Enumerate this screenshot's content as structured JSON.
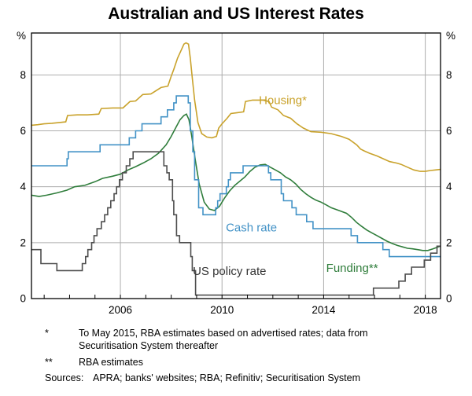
{
  "title": "Australian and US Interest Rates",
  "chart_data": {
    "type": "line",
    "title": "Australian and US Interest Rates",
    "y_unit": "%",
    "xlim": [
      2002.5,
      2018.6
    ],
    "ylim": [
      0,
      9.5
    ],
    "yticks": [
      0,
      2,
      4,
      6,
      8
    ],
    "ygrid": [
      2,
      4,
      6,
      8
    ],
    "xgrid": [
      2006,
      2010,
      2014,
      2018
    ],
    "xticks_minor": [
      2003,
      2004,
      2005,
      2006,
      2007,
      2008,
      2009,
      2010,
      2011,
      2012,
      2013,
      2014,
      2015,
      2016,
      2017,
      2018
    ],
    "xtick_labels": [
      {
        "x": 2006,
        "label": "2006"
      },
      {
        "x": 2010,
        "label": "2010"
      },
      {
        "x": 2014,
        "label": "2014"
      },
      {
        "x": 2018,
        "label": "2018"
      }
    ],
    "grid_color": "#ADADAD",
    "legend_position": "inline-annotations",
    "series": [
      {
        "name": "Housing*",
        "color": "#C9A22B",
        "step": false,
        "points": [
          [
            2002.5,
            6.2
          ],
          [
            2002.75,
            6.22
          ],
          [
            2003.0,
            6.25
          ],
          [
            2003.3,
            6.27
          ],
          [
            2003.6,
            6.3
          ],
          [
            2003.85,
            6.32
          ],
          [
            2003.92,
            6.55
          ],
          [
            2004.3,
            6.57
          ],
          [
            2004.7,
            6.57
          ],
          [
            2005.15,
            6.6
          ],
          [
            2005.25,
            6.8
          ],
          [
            2005.7,
            6.82
          ],
          [
            2006.1,
            6.82
          ],
          [
            2006.38,
            7.05
          ],
          [
            2006.6,
            7.07
          ],
          [
            2006.88,
            7.3
          ],
          [
            2007.2,
            7.32
          ],
          [
            2007.6,
            7.55
          ],
          [
            2007.87,
            7.6
          ],
          [
            2008.0,
            7.95
          ],
          [
            2008.1,
            8.2
          ],
          [
            2008.25,
            8.6
          ],
          [
            2008.4,
            8.9
          ],
          [
            2008.5,
            9.1
          ],
          [
            2008.58,
            9.15
          ],
          [
            2008.68,
            9.1
          ],
          [
            2008.75,
            8.6
          ],
          [
            2008.83,
            7.9
          ],
          [
            2008.92,
            7.1
          ],
          [
            2009.05,
            6.3
          ],
          [
            2009.2,
            5.9
          ],
          [
            2009.4,
            5.78
          ],
          [
            2009.6,
            5.75
          ],
          [
            2009.78,
            5.8
          ],
          [
            2009.87,
            6.1
          ],
          [
            2010.0,
            6.25
          ],
          [
            2010.2,
            6.45
          ],
          [
            2010.35,
            6.62
          ],
          [
            2010.6,
            6.65
          ],
          [
            2010.85,
            6.68
          ],
          [
            2010.92,
            7.05
          ],
          [
            2011.2,
            7.1
          ],
          [
            2011.6,
            7.1
          ],
          [
            2011.85,
            7.05
          ],
          [
            2011.95,
            6.85
          ],
          [
            2012.2,
            6.75
          ],
          [
            2012.42,
            6.55
          ],
          [
            2012.7,
            6.45
          ],
          [
            2012.95,
            6.25
          ],
          [
            2013.2,
            6.1
          ],
          [
            2013.5,
            5.97
          ],
          [
            2013.9,
            5.95
          ],
          [
            2014.3,
            5.9
          ],
          [
            2014.7,
            5.8
          ],
          [
            2015.0,
            5.7
          ],
          [
            2015.3,
            5.5
          ],
          [
            2015.45,
            5.35
          ],
          [
            2015.6,
            5.28
          ],
          [
            2015.8,
            5.2
          ],
          [
            2016.1,
            5.1
          ],
          [
            2016.35,
            5.0
          ],
          [
            2016.6,
            4.9
          ],
          [
            2016.85,
            4.85
          ],
          [
            2017.05,
            4.8
          ],
          [
            2017.3,
            4.7
          ],
          [
            2017.55,
            4.6
          ],
          [
            2017.8,
            4.55
          ],
          [
            2018.0,
            4.55
          ],
          [
            2018.2,
            4.58
          ],
          [
            2018.4,
            4.6
          ],
          [
            2018.6,
            4.62
          ]
        ]
      },
      {
        "name": "Funding**",
        "color": "#2F7D3B",
        "step": false,
        "points": [
          [
            2002.5,
            3.7
          ],
          [
            2002.8,
            3.65
          ],
          [
            2003.1,
            3.7
          ],
          [
            2003.5,
            3.78
          ],
          [
            2003.9,
            3.88
          ],
          [
            2004.2,
            4.0
          ],
          [
            2004.6,
            4.05
          ],
          [
            2005.0,
            4.18
          ],
          [
            2005.3,
            4.3
          ],
          [
            2005.7,
            4.38
          ],
          [
            2006.0,
            4.45
          ],
          [
            2006.3,
            4.6
          ],
          [
            2006.6,
            4.72
          ],
          [
            2006.9,
            4.85
          ],
          [
            2007.2,
            5.0
          ],
          [
            2007.5,
            5.2
          ],
          [
            2007.8,
            5.5
          ],
          [
            2008.0,
            5.8
          ],
          [
            2008.2,
            6.15
          ],
          [
            2008.35,
            6.4
          ],
          [
            2008.5,
            6.55
          ],
          [
            2008.6,
            6.6
          ],
          [
            2008.7,
            6.4
          ],
          [
            2008.8,
            5.85
          ],
          [
            2008.95,
            4.95
          ],
          [
            2009.1,
            4.1
          ],
          [
            2009.3,
            3.45
          ],
          [
            2009.5,
            3.2
          ],
          [
            2009.7,
            3.15
          ],
          [
            2009.9,
            3.3
          ],
          [
            2010.1,
            3.6
          ],
          [
            2010.3,
            3.85
          ],
          [
            2010.5,
            4.05
          ],
          [
            2010.7,
            4.2
          ],
          [
            2010.9,
            4.35
          ],
          [
            2011.1,
            4.55
          ],
          [
            2011.3,
            4.7
          ],
          [
            2011.5,
            4.78
          ],
          [
            2011.7,
            4.8
          ],
          [
            2011.9,
            4.7
          ],
          [
            2012.1,
            4.6
          ],
          [
            2012.3,
            4.5
          ],
          [
            2012.5,
            4.35
          ],
          [
            2012.7,
            4.25
          ],
          [
            2012.9,
            4.1
          ],
          [
            2013.1,
            3.9
          ],
          [
            2013.3,
            3.75
          ],
          [
            2013.5,
            3.62
          ],
          [
            2013.7,
            3.52
          ],
          [
            2013.9,
            3.45
          ],
          [
            2014.1,
            3.35
          ],
          [
            2014.3,
            3.25
          ],
          [
            2014.6,
            3.15
          ],
          [
            2014.9,
            3.05
          ],
          [
            2015.1,
            2.9
          ],
          [
            2015.3,
            2.72
          ],
          [
            2015.5,
            2.58
          ],
          [
            2015.7,
            2.45
          ],
          [
            2015.9,
            2.35
          ],
          [
            2016.1,
            2.25
          ],
          [
            2016.3,
            2.15
          ],
          [
            2016.5,
            2.05
          ],
          [
            2016.7,
            1.97
          ],
          [
            2016.9,
            1.9
          ],
          [
            2017.1,
            1.85
          ],
          [
            2017.3,
            1.8
          ],
          [
            2017.5,
            1.78
          ],
          [
            2017.7,
            1.75
          ],
          [
            2017.9,
            1.72
          ],
          [
            2018.1,
            1.72
          ],
          [
            2018.3,
            1.78
          ],
          [
            2018.6,
            1.88
          ]
        ]
      },
      {
        "name": "Cash rate",
        "color": "#4292C6",
        "step": true,
        "points": [
          [
            2002.5,
            4.75
          ],
          [
            2003.9,
            5.0
          ],
          [
            2003.95,
            5.25
          ],
          [
            2005.2,
            5.5
          ],
          [
            2006.35,
            5.75
          ],
          [
            2006.6,
            6.0
          ],
          [
            2006.85,
            6.25
          ],
          [
            2007.6,
            6.5
          ],
          [
            2007.85,
            6.75
          ],
          [
            2008.1,
            7.0
          ],
          [
            2008.2,
            7.25
          ],
          [
            2008.67,
            7.0
          ],
          [
            2008.75,
            6.0
          ],
          [
            2008.85,
            5.25
          ],
          [
            2008.92,
            4.25
          ],
          [
            2009.08,
            3.25
          ],
          [
            2009.25,
            3.0
          ],
          [
            2009.75,
            3.25
          ],
          [
            2009.83,
            3.5
          ],
          [
            2009.92,
            3.75
          ],
          [
            2010.17,
            4.0
          ],
          [
            2010.25,
            4.25
          ],
          [
            2010.33,
            4.5
          ],
          [
            2010.83,
            4.75
          ],
          [
            2011.83,
            4.5
          ],
          [
            2011.92,
            4.25
          ],
          [
            2012.33,
            3.75
          ],
          [
            2012.42,
            3.5
          ],
          [
            2012.75,
            3.25
          ],
          [
            2012.92,
            3.0
          ],
          [
            2013.33,
            2.75
          ],
          [
            2013.58,
            2.5
          ],
          [
            2015.08,
            2.25
          ],
          [
            2015.33,
            2.0
          ],
          [
            2016.33,
            1.75
          ],
          [
            2016.58,
            1.5
          ],
          [
            2018.6,
            1.5
          ]
        ]
      },
      {
        "name": "US policy rate",
        "color": "#4D4D4D",
        "step": true,
        "points": [
          [
            2002.5,
            1.75
          ],
          [
            2002.87,
            1.25
          ],
          [
            2003.5,
            1.0
          ],
          [
            2004.5,
            1.25
          ],
          [
            2004.63,
            1.5
          ],
          [
            2004.72,
            1.75
          ],
          [
            2004.87,
            2.0
          ],
          [
            2004.96,
            2.25
          ],
          [
            2005.08,
            2.5
          ],
          [
            2005.25,
            2.75
          ],
          [
            2005.38,
            3.0
          ],
          [
            2005.5,
            3.25
          ],
          [
            2005.62,
            3.5
          ],
          [
            2005.75,
            3.75
          ],
          [
            2005.85,
            4.0
          ],
          [
            2005.96,
            4.25
          ],
          [
            2006.08,
            4.5
          ],
          [
            2006.23,
            4.75
          ],
          [
            2006.37,
            5.0
          ],
          [
            2006.5,
            5.25
          ],
          [
            2007.71,
            4.75
          ],
          [
            2007.83,
            4.5
          ],
          [
            2007.92,
            4.25
          ],
          [
            2008.05,
            3.5
          ],
          [
            2008.1,
            3.0
          ],
          [
            2008.21,
            2.25
          ],
          [
            2008.33,
            2.0
          ],
          [
            2008.77,
            1.5
          ],
          [
            2008.83,
            1.0
          ],
          [
            2008.96,
            0.125
          ],
          [
            2015.96,
            0.375
          ],
          [
            2016.96,
            0.625
          ],
          [
            2017.21,
            0.875
          ],
          [
            2017.46,
            1.125
          ],
          [
            2017.96,
            1.375
          ],
          [
            2018.21,
            1.625
          ],
          [
            2018.46,
            1.875
          ],
          [
            2018.6,
            1.875
          ]
        ]
      }
    ],
    "annotations": [
      {
        "text": "Housing*",
        "x": 2011.45,
        "y": 6.95,
        "color": "#C9A22B"
      },
      {
        "text": "Cash rate",
        "x": 2010.15,
        "y": 2.4,
        "color": "#4292C6"
      },
      {
        "text": "US policy rate",
        "x": 2008.85,
        "y": 0.85,
        "color": "#333333"
      },
      {
        "text": "Funding**",
        "x": 2014.1,
        "y": 0.95,
        "color": "#2F7D3B"
      }
    ]
  },
  "footnotes": [
    {
      "marker": "*",
      "text": "To May 2015, RBA estimates based on advertised rates; data from Securitisation System thereafter"
    },
    {
      "marker": "**",
      "text": "RBA estimates"
    }
  ],
  "sources": {
    "label": "Sources:",
    "text": "APRA; banks' websites; RBA; Refinitiv; Securitisation System"
  }
}
